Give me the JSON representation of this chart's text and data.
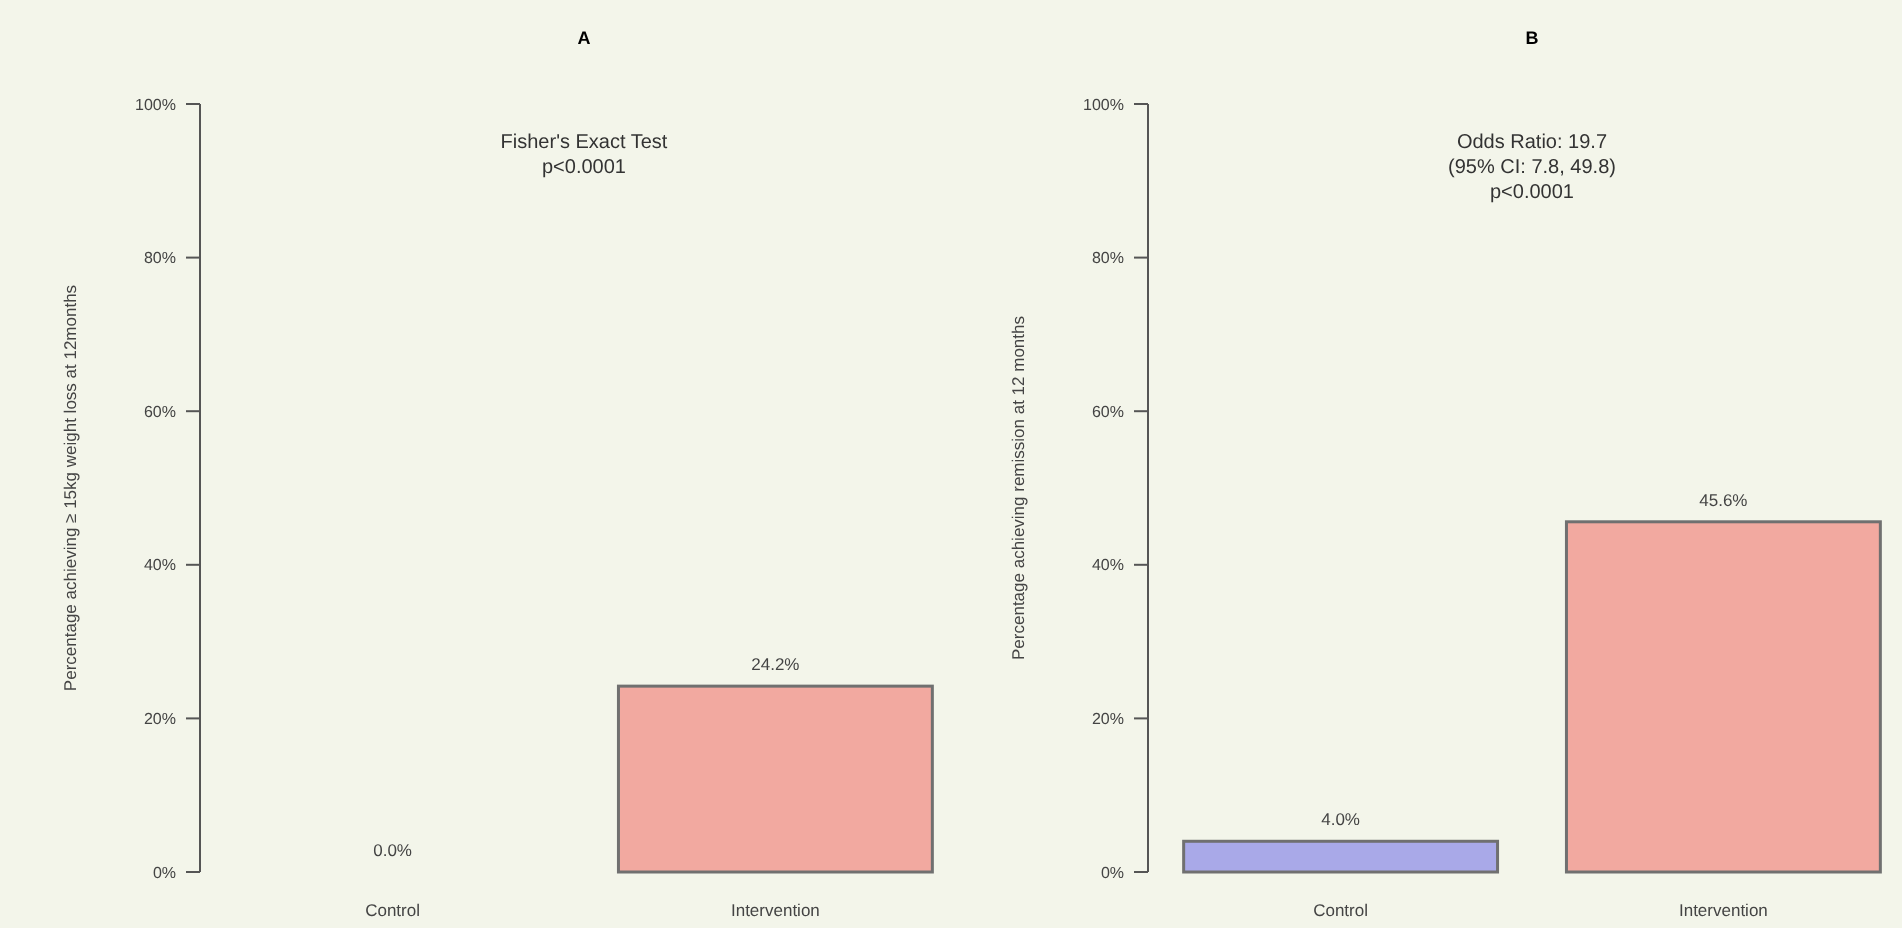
{
  "chart_data": [
    {
      "type": "bar",
      "title": "A",
      "ylabel": "Percentage achieving ≥ 15kg weight loss at 12months",
      "categories": [
        "Control",
        "Intervention"
      ],
      "values": [
        0,
        24.2
      ],
      "colors": [
        "#a9a9e8",
        "#f2a9a0"
      ],
      "value_labels": [
        "0.0%",
        "24.2%"
      ],
      "ylim": [
        0,
        100
      ],
      "yticks": [
        {
          "value": 0,
          "label": "0%"
        },
        {
          "value": 20,
          "label": "20%"
        },
        {
          "value": 40,
          "label": "40%"
        },
        {
          "value": 60,
          "label": "60%"
        },
        {
          "value": 80,
          "label": "80%"
        },
        {
          "value": 100,
          "label": "100%"
        }
      ],
      "annotations": [
        "Fisher's Exact Test\np<0.0001"
      ]
    },
    {
      "type": "bar",
      "title": "B",
      "ylabel": "Percentage achieving remission at 12 months",
      "categories": [
        "Control",
        "Intervention"
      ],
      "values": [
        4.0,
        45.6
      ],
      "colors": [
        "#a9a9e8",
        "#f2a9a0"
      ],
      "value_labels": [
        "4.0%",
        "45.6%"
      ],
      "ylim": [
        0,
        100
      ],
      "yticks": [
        {
          "value": 0,
          "label": "0%"
        },
        {
          "value": 20,
          "label": "20%"
        },
        {
          "value": 40,
          "label": "40%"
        },
        {
          "value": 60,
          "label": "60%"
        },
        {
          "value": 80,
          "label": "80%"
        },
        {
          "value": 100,
          "label": "100%"
        }
      ],
      "annotations": [
        "Odds Ratio: 19.7\n(95% CI: 7.8, 49.8)\np<0.0001"
      ]
    }
  ]
}
